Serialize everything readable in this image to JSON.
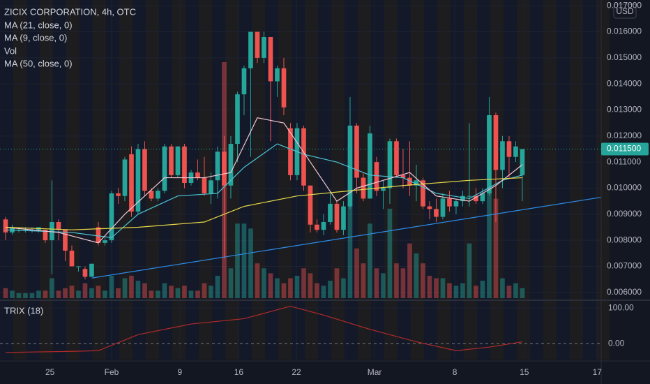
{
  "chart_data": {
    "type": "candlestick",
    "title": "ZICIX CORPORATION, 4h, OTC",
    "legend": [
      "MA (21, close, 0)",
      "MA (9, close, 0)",
      "Vol",
      "MA (50, close, 0)"
    ],
    "currency": "USD",
    "up_color": "#26a69a",
    "down_color": "#ef5350",
    "xlim": [
      -0.84,
      89.9
    ],
    "xticks": [
      {
        "value": 6.7,
        "label": "25"
      },
      {
        "value": 16,
        "label": "Feb"
      },
      {
        "value": 26.3,
        "label": "9"
      },
      {
        "value": 35.2,
        "label": "16"
      },
      {
        "value": 43.9,
        "label": "22"
      },
      {
        "value": 55.7,
        "label": "Mar"
      },
      {
        "value": 67.8,
        "label": "8"
      },
      {
        "value": 78.3,
        "label": "15"
      },
      {
        "value": 89.3,
        "label": "17"
      }
    ],
    "ylim": [
      0.00578,
      0.01722
    ],
    "yticks": [
      {
        "value": 0.006,
        "label": "0.006000"
      },
      {
        "value": 0.007,
        "label": "0.007000"
      },
      {
        "value": 0.008,
        "label": "0.008000"
      },
      {
        "value": 0.009,
        "label": "0.009000"
      },
      {
        "value": 0.01,
        "label": "0.010000"
      },
      {
        "value": 0.011,
        "label": "0.011000"
      },
      {
        "value": 0.012,
        "label": "0.012000"
      },
      {
        "value": 0.013,
        "label": "0.013000"
      },
      {
        "value": 0.014,
        "label": "0.014000"
      },
      {
        "value": 0.015,
        "label": "0.015000"
      },
      {
        "value": 0.016,
        "label": "0.016000"
      },
      {
        "value": 0.017,
        "label": "0.017000"
      }
    ],
    "last_price": {
      "value": 0.0115,
      "label": "0.011500"
    },
    "candles": [
      [
        0.0088,
        0.0089,
        0.008,
        0.0083
      ],
      [
        0.0083,
        0.0086,
        0.0082,
        0.0085
      ],
      [
        0.0084,
        0.0085,
        0.0083,
        0.0084
      ],
      [
        0.0084,
        0.0085,
        0.0083,
        0.0084
      ],
      [
        0.0084,
        0.0085,
        0.0083,
        0.0084
      ],
      [
        0.0084,
        0.0085,
        0.0083,
        0.0085
      ],
      [
        0.0084,
        0.0084,
        0.0079,
        0.008
      ],
      [
        0.008,
        0.0103,
        0.0067,
        0.0087
      ],
      [
        0.0087,
        0.0088,
        0.008,
        0.0084
      ],
      [
        0.0084,
        0.0084,
        0.0072,
        0.0076
      ],
      [
        0.0076,
        0.0078,
        0.007,
        0.007
      ],
      [
        0.007,
        0.007,
        0.0068,
        0.007
      ],
      [
        0.0069,
        0.007,
        0.0065,
        0.0066
      ],
      [
        0.0066,
        0.0071,
        0.0066,
        0.0071
      ],
      [
        0.0085,
        0.0087,
        0.0078,
        0.0079
      ],
      [
        0.0079,
        0.0081,
        0.0078,
        0.008
      ],
      [
        0.008,
        0.0099,
        0.0079,
        0.0098
      ],
      [
        0.0098,
        0.01,
        0.0094,
        0.0097
      ],
      [
        0.0097,
        0.0112,
        0.0095,
        0.0111
      ],
      [
        0.0113,
        0.0116,
        0.0089,
        0.0091
      ],
      [
        0.0091,
        0.0117,
        0.009,
        0.0115
      ],
      [
        0.0115,
        0.0118,
        0.0097,
        0.0099
      ],
      [
        0.0099,
        0.01,
        0.0095,
        0.0096
      ],
      [
        0.0096,
        0.01,
        0.0095,
        0.0099
      ],
      [
        0.0099,
        0.0117,
        0.0098,
        0.0116
      ],
      [
        0.0116,
        0.0117,
        0.0104,
        0.0105
      ],
      [
        0.0105,
        0.0116,
        0.0104,
        0.0116
      ],
      [
        0.0116,
        0.0117,
        0.01,
        0.0102
      ],
      [
        0.0102,
        0.0107,
        0.0101,
        0.0106
      ],
      [
        0.0106,
        0.0111,
        0.0103,
        0.0104
      ],
      [
        0.0104,
        0.0112,
        0.0097,
        0.0098
      ],
      [
        0.0098,
        0.0106,
        0.0094,
        0.0103
      ],
      [
        0.0103,
        0.0116,
        0.0096,
        0.0114
      ],
      [
        0.0114,
        0.012,
        0.0073,
        0.0101
      ],
      [
        0.0101,
        0.012,
        0.0096,
        0.0117
      ],
      [
        0.0117,
        0.0137,
        0.011,
        0.0136
      ],
      [
        0.0136,
        0.0147,
        0.0128,
        0.0146
      ],
      [
        0.0146,
        0.016,
        0.0112,
        0.016
      ],
      [
        0.016,
        0.016,
        0.0148,
        0.015
      ],
      [
        0.015,
        0.016,
        0.0148,
        0.0158
      ],
      [
        0.0158,
        0.0158,
        0.0118,
        0.0141
      ],
      [
        0.0141,
        0.0147,
        0.0135,
        0.0146
      ],
      [
        0.0146,
        0.015,
        0.0128,
        0.0131
      ],
      [
        0.0123,
        0.0125,
        0.0103,
        0.0105
      ],
      [
        0.0105,
        0.0125,
        0.0103,
        0.0123
      ],
      [
        0.0123,
        0.0124,
        0.0099,
        0.0101
      ],
      [
        0.0101,
        0.0101,
        0.0083,
        0.0086
      ],
      [
        0.0086,
        0.0088,
        0.0083,
        0.0084
      ],
      [
        0.0084,
        0.009,
        0.0082,
        0.0087
      ],
      [
        0.0087,
        0.0098,
        0.0086,
        0.0094
      ],
      [
        0.0094,
        0.0095,
        0.0083,
        0.0084
      ],
      [
        0.0084,
        0.0095,
        0.0082,
        0.0093
      ],
      [
        0.0093,
        0.0135,
        0.0092,
        0.0124
      ],
      [
        0.0124,
        0.0125,
        0.0098,
        0.0104
      ],
      [
        0.0104,
        0.0106,
        0.0095,
        0.0096
      ],
      [
        0.0096,
        0.0124,
        0.0096,
        0.0121
      ],
      [
        0.011,
        0.0112,
        0.0097,
        0.0099
      ],
      [
        0.0099,
        0.0103,
        0.0092,
        0.01
      ],
      [
        0.01,
        0.0119,
        0.0094,
        0.0118
      ],
      [
        0.0118,
        0.0119,
        0.0104,
        0.0105
      ],
      [
        0.0105,
        0.0115,
        0.01,
        0.0104
      ],
      [
        0.0104,
        0.0118,
        0.0097,
        0.0101
      ],
      [
        0.0101,
        0.0109,
        0.0095,
        0.0103
      ],
      [
        0.0103,
        0.0104,
        0.0092,
        0.0093
      ],
      [
        0.0093,
        0.0095,
        0.0088,
        0.0092
      ],
      [
        0.0092,
        0.0096,
        0.0087,
        0.0089
      ],
      [
        0.0089,
        0.0098,
        0.0088,
        0.0096
      ],
      [
        0.0096,
        0.0099,
        0.0091,
        0.0093
      ],
      [
        0.0093,
        0.0096,
        0.009,
        0.0095
      ],
      [
        0.0095,
        0.0099,
        0.0093,
        0.0097
      ],
      [
        0.0097,
        0.0125,
        0.0093,
        0.0097
      ],
      [
        0.0097,
        0.01,
        0.0094,
        0.0095
      ],
      [
        0.0095,
        0.01,
        0.0094,
        0.0098
      ],
      [
        0.0098,
        0.0135,
        0.0097,
        0.0128
      ],
      [
        0.0128,
        0.0129,
        0.0087,
        0.0107
      ],
      [
        0.0107,
        0.012,
        0.01,
        0.0118
      ],
      [
        0.0118,
        0.012,
        0.0104,
        0.0112
      ],
      [
        0.0112,
        0.0118,
        0.011,
        0.0116
      ],
      [
        0.0105,
        0.0115,
        0.0095,
        0.0115
      ]
    ],
    "volume_lim": [
      0,
      120
    ],
    "volume": [
      4,
      3,
      2,
      2,
      2,
      3,
      3,
      8,
      3,
      4,
      5,
      3,
      6,
      4,
      5,
      3,
      9,
      4,
      8,
      9,
      7,
      6,
      3,
      3,
      6,
      5,
      4,
      5,
      3,
      3,
      6,
      5,
      9,
      95,
      12,
      30,
      30,
      28,
      14,
      12,
      10,
      8,
      6,
      8,
      9,
      12,
      10,
      6,
      5,
      7,
      12,
      8,
      62,
      20,
      14,
      30,
      12,
      10,
      36,
      14,
      12,
      22,
      18,
      14,
      9,
      8,
      8,
      6,
      5,
      6,
      22,
      5,
      7,
      72,
      40,
      8,
      5,
      6,
      4
    ],
    "ma_lines": [
      {
        "name": "MA (21, close, 0)",
        "color": "#4dc4d6",
        "x": [
          0,
          10,
          16,
          20,
          26,
          32,
          36,
          41,
          45,
          50,
          55,
          60,
          65,
          70,
          75,
          78
        ],
        "values": [
          0.0084,
          0.0083,
          0.0081,
          0.009,
          0.0097,
          0.0098,
          0.0108,
          0.0117,
          0.0113,
          0.011,
          0.0105,
          0.0104,
          0.0098,
          0.0096,
          0.0103,
          0.0105
        ]
      },
      {
        "name": "MA (9, close, 0)",
        "color": "#f3c6d4",
        "x": [
          0,
          8,
          14,
          18,
          24,
          30,
          34,
          38,
          42,
          46,
          50,
          53,
          57,
          61,
          65,
          70,
          74,
          78
        ],
        "values": [
          0.0085,
          0.0083,
          0.0079,
          0.009,
          0.0104,
          0.0104,
          0.0106,
          0.0127,
          0.0125,
          0.011,
          0.0095,
          0.01,
          0.0103,
          0.0106,
          0.0097,
          0.0095,
          0.0101,
          0.0109
        ]
      },
      {
        "name": "MA (50, close, 0)",
        "color": "#e8d84a",
        "x": [
          0,
          10,
          20,
          30,
          36,
          44,
          52,
          60,
          70,
          78
        ],
        "values": [
          0.0085,
          0.0084,
          0.0085,
          0.0087,
          0.0093,
          0.0097,
          0.0099,
          0.0101,
          0.0103,
          0.0104
        ]
      }
    ],
    "trendline": {
      "color": "#2e8be6",
      "x": [
        13,
        89.9
      ],
      "values": [
        0.00655,
        0.00965
      ]
    },
    "trix": {
      "name": "TRIX (18)",
      "color": "#b22a2a",
      "ylim": [
        -45,
        116
      ],
      "yticks": [
        {
          "value": 100,
          "label": "100.00"
        },
        {
          "value": 0,
          "label": "0.00"
        }
      ],
      "x": [
        0,
        10,
        14,
        20,
        28,
        36,
        43,
        48,
        55,
        62,
        68,
        73,
        78
      ],
      "values": [
        -25,
        -22,
        -20,
        25,
        55,
        70,
        105,
        80,
        40,
        5,
        -20,
        -10,
        5
      ]
    }
  }
}
